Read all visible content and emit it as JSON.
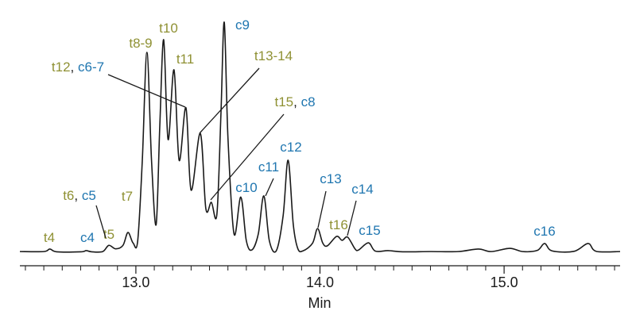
{
  "chart_data": {
    "type": "line",
    "xlabel": "Min",
    "xlim": [
      12.37,
      15.63
    ],
    "ylim": [
      0,
      100
    ],
    "xticks": [
      {
        "value": 13,
        "label": "13.0"
      },
      {
        "value": 14,
        "label": "14.0"
      },
      {
        "value": 15,
        "label": "15.0"
      }
    ],
    "xminorticks": [
      12.4,
      12.5,
      12.6,
      12.7,
      12.8,
      12.9,
      13.1,
      13.2,
      13.3,
      13.4,
      13.5,
      13.6,
      13.7,
      13.8,
      13.9,
      14.1,
      14.2,
      14.3,
      14.4,
      14.5,
      14.6,
      14.7,
      14.8,
      14.9,
      15.1,
      15.2,
      15.3,
      15.4,
      15.5,
      15.6
    ],
    "x": [
      12.37,
      12.5,
      12.533,
      12.57,
      12.7,
      12.73,
      12.76,
      12.82,
      12.853,
      12.89,
      12.93,
      12.957,
      12.985,
      13.01,
      13.035,
      13.06,
      13.085,
      13.11,
      13.13,
      13.151,
      13.175,
      13.207,
      13.235,
      13.272,
      13.3,
      13.35,
      13.38,
      13.41,
      13.44,
      13.462,
      13.48,
      13.5,
      13.533,
      13.57,
      13.6,
      13.63,
      13.665,
      13.695,
      13.725,
      13.763,
      13.8,
      13.827,
      13.855,
      13.88,
      13.91,
      13.96,
      13.987,
      14.015,
      14.04,
      14.09,
      14.12,
      14.15,
      14.19,
      14.21,
      14.263,
      14.3,
      14.37,
      14.45,
      14.6,
      14.75,
      14.86,
      14.93,
      15.03,
      15.1,
      15.18,
      15.22,
      15.26,
      15.38,
      15.456,
      15.5,
      15.63
    ],
    "series": [
      {
        "color": "#1a1a1a",
        "values": [
          0.3,
          0.3,
          1.4,
          0.2,
          0.2,
          0.7,
          0.2,
          0.3,
          3,
          1.5,
          3,
          8.6,
          4,
          5,
          40,
          86.9,
          40,
          12,
          55,
          92.4,
          49,
          79.3,
          40,
          62.8,
          27,
          51.7,
          19,
          21.7,
          16.5,
          60,
          100,
          50,
          8,
          24,
          5,
          1,
          8,
          24.5,
          5,
          0.7,
          16,
          40,
          12,
          1.5,
          0.7,
          4,
          10.3,
          4,
          2.8,
          6.9,
          5.2,
          6.6,
          1.5,
          1,
          4.1,
          0.5,
          0.7,
          0.2,
          0.3,
          0.3,
          1.4,
          0.3,
          1.7,
          0.3,
          0.8,
          3.8,
          0.6,
          0.4,
          3.8,
          0.4,
          0.3
        ]
      }
    ],
    "annotations": [
      {
        "parts": [
          {
            "text": "t4",
            "color": "#8f9134"
          }
        ]
      },
      {
        "parts": [
          {
            "text": "c4",
            "color": "#1f76b0"
          }
        ]
      },
      {
        "parts": [
          {
            "text": "t5",
            "color": "#8f9134"
          }
        ]
      },
      {
        "parts": [
          {
            "text": "t6",
            "color": "#8f9134"
          },
          {
            "text": ", ",
            "color": "#1a1a1a"
          },
          {
            "text": "c5",
            "color": "#1f76b0"
          }
        ]
      },
      {
        "parts": [
          {
            "text": "t7",
            "color": "#8f9134"
          }
        ]
      },
      {
        "parts": [
          {
            "text": "t8-9",
            "color": "#8f9134"
          }
        ]
      },
      {
        "parts": [
          {
            "text": "t10",
            "color": "#8f9134"
          }
        ]
      },
      {
        "parts": [
          {
            "text": "t11",
            "color": "#8f9134"
          }
        ]
      },
      {
        "parts": [
          {
            "text": "t12",
            "color": "#8f9134"
          },
          {
            "text": ", ",
            "color": "#1a1a1a"
          },
          {
            "text": "c6-7",
            "color": "#1f76b0"
          }
        ]
      },
      {
        "parts": [
          {
            "text": "t13-14",
            "color": "#8f9134"
          }
        ]
      },
      {
        "parts": [
          {
            "text": "t15",
            "color": "#8f9134"
          },
          {
            "text": ", ",
            "color": "#1a1a1a"
          },
          {
            "text": "c8",
            "color": "#1f76b0"
          }
        ]
      },
      {
        "parts": [
          {
            "text": "c9",
            "color": "#1f76b0"
          }
        ]
      },
      {
        "parts": [
          {
            "text": "c10",
            "color": "#1f76b0"
          }
        ]
      },
      {
        "parts": [
          {
            "text": "c11",
            "color": "#1f76b0"
          }
        ]
      },
      {
        "parts": [
          {
            "text": "c12",
            "color": "#1f76b0"
          }
        ]
      },
      {
        "parts": [
          {
            "text": "c13",
            "color": "#1f76b0"
          }
        ]
      },
      {
        "parts": [
          {
            "text": "t16",
            "color": "#8f9134"
          }
        ]
      },
      {
        "parts": [
          {
            "text": "c14",
            "color": "#1f76b0"
          }
        ]
      },
      {
        "parts": [
          {
            "text": "c15",
            "color": "#1f76b0"
          }
        ]
      },
      {
        "parts": [
          {
            "text": "c16",
            "color": "#1f76b0"
          }
        ]
      }
    ]
  }
}
